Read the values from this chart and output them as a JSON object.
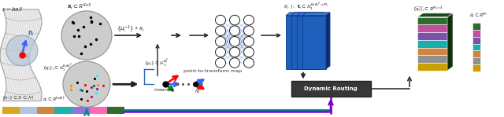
{
  "fig_width": 6.4,
  "fig_height": 1.49,
  "dpi": 100,
  "bg_color": "#ffffff",
  "bar_colors": [
    "#DAA520",
    "#B0C4DE",
    "#CD853F",
    "#20B2AA",
    "#9370DB",
    "#FF69B4",
    "#2E6B2E"
  ],
  "block_colors_large": [
    "#2E6B2E",
    "#C0509A",
    "#7B52AB",
    "#1AADAD",
    "#CD853F",
    "#808080",
    "#DAA520"
  ],
  "block_colors_small": [
    "#2E6B2E",
    "#C0509A",
    "#7B52AB",
    "#1AADAD",
    "#CD853F",
    "#808080",
    "#DAA520"
  ],
  "blue_block_color": "#1E5FBB",
  "blue_block_top": "#4477CC",
  "blue_block_right": "#0F2D6E",
  "teal_line": "#008B8B",
  "purple_line": "#7B00D4",
  "dr_bg": "#404040",
  "dr_text": "#ffffff",
  "arrow_dark": "#222222",
  "nn_line_color": "#3366BB"
}
